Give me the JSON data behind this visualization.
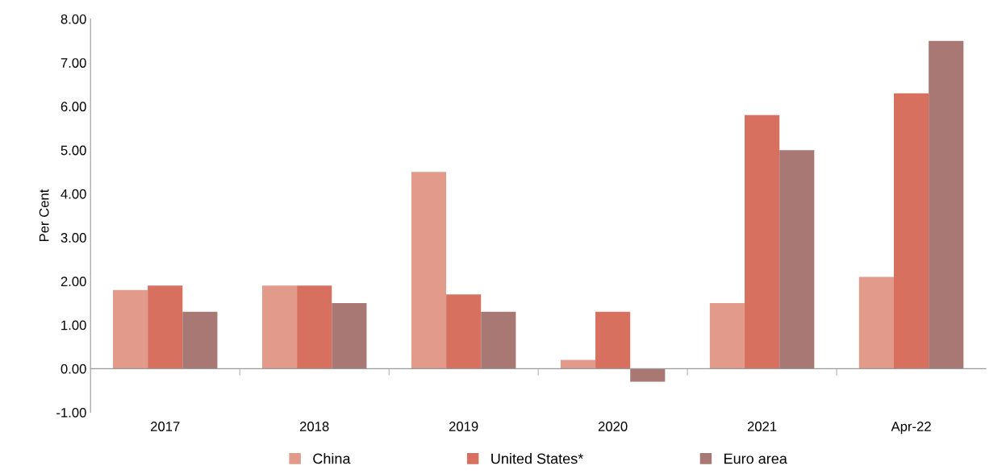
{
  "chart_data": {
    "type": "bar",
    "ylabel": "Per Cent",
    "categories": [
      "2017",
      "2018",
      "2019",
      "2020",
      "2021",
      "Apr-22"
    ],
    "series": [
      {
        "name": "China",
        "color": "#e29a8a",
        "values": [
          1.8,
          1.9,
          4.5,
          0.2,
          1.5,
          2.1
        ]
      },
      {
        "name": "United States*",
        "color": "#d87060",
        "values": [
          1.9,
          1.9,
          1.7,
          1.3,
          5.8,
          6.3
        ]
      },
      {
        "name": "Euro area",
        "color": "#a87874",
        "values": [
          1.3,
          1.5,
          1.3,
          -0.3,
          5.0,
          7.5
        ]
      }
    ],
    "ylim": [
      -1,
      8
    ],
    "yticks": [
      {
        "value": -1,
        "label": "-1.00"
      },
      {
        "value": 0,
        "label": "0.00"
      },
      {
        "value": 1,
        "label": "1.00"
      },
      {
        "value": 2,
        "label": "2.00"
      },
      {
        "value": 3,
        "label": "3.00"
      },
      {
        "value": 4,
        "label": "4.00"
      },
      {
        "value": 5,
        "label": "5.00"
      },
      {
        "value": 6,
        "label": "6.00"
      },
      {
        "value": 7,
        "label": "7.00"
      },
      {
        "value": 8,
        "label": "8.00"
      }
    ],
    "legend": "bottom"
  }
}
